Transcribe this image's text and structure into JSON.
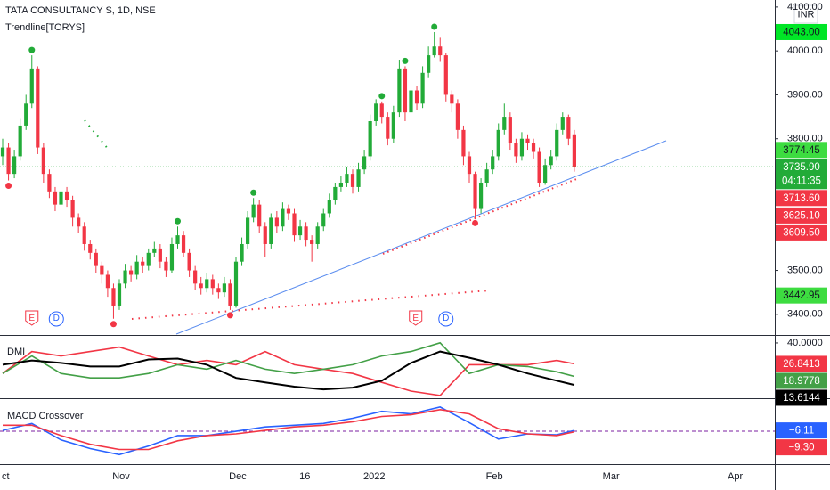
{
  "chart_data": {
    "type": "candlestick",
    "title": "TATA CONSULTANCY S, 1D, NSE",
    "subtitle": "Trendline[TORYS]",
    "currency": "INR",
    "up_color": "#22ab38",
    "down_color": "#f23645",
    "open": [
      3760,
      3780,
      3720,
      3760,
      3830,
      3880,
      3960,
      3780,
      3720,
      3680,
      3650,
      3680,
      3660,
      3620,
      3600,
      3560,
      3540,
      3510,
      3490,
      3460,
      3420,
      3470,
      3500,
      3490,
      3520,
      3510,
      3540,
      3550,
      3520,
      3500,
      3560,
      3580,
      3540,
      3500,
      3470,
      3460,
      3480,
      3460,
      3450,
      3470,
      3420,
      3520,
      3560,
      3620,
      3650,
      3600,
      3560,
      3620,
      3600,
      3640,
      3630,
      3580,
      3600,
      3570,
      3560,
      3600,
      3630,
      3660,
      3690,
      3700,
      3720,
      3690,
      3730,
      3760,
      3840,
      3880,
      3850,
      3800,
      3860,
      3960,
      3860,
      3910,
      3880,
      3950,
      3990,
      4010,
      3990,
      3900,
      3880,
      3820,
      3760,
      3720,
      3640,
      3700,
      3730,
      3760,
      3820,
      3850,
      3790,
      3760,
      3800,
      3790,
      3770,
      3700,
      3740,
      3760,
      3820,
      3850,
      3810
    ],
    "high": [
      3800,
      3790,
      3775,
      3845,
      3900,
      3990,
      3965,
      3790,
      3730,
      3690,
      3700,
      3690,
      3670,
      3630,
      3610,
      3570,
      3550,
      3520,
      3500,
      3470,
      3480,
      3515,
      3510,
      3535,
      3530,
      3550,
      3565,
      3560,
      3530,
      3575,
      3600,
      3590,
      3550,
      3510,
      3485,
      3495,
      3490,
      3470,
      3485,
      3480,
      3530,
      3575,
      3635,
      3665,
      3660,
      3610,
      3630,
      3635,
      3655,
      3650,
      3640,
      3615,
      3610,
      3580,
      3610,
      3640,
      3675,
      3700,
      3715,
      3735,
      3730,
      3745,
      3775,
      3855,
      3890,
      3885,
      3860,
      3875,
      3980,
      3965,
      3925,
      3920,
      3965,
      4010,
      4043,
      4030,
      3995,
      3910,
      3890,
      3830,
      3770,
      3725,
      3710,
      3745,
      3775,
      3835,
      3880,
      3860,
      3800,
      3815,
      3810,
      3800,
      3780,
      3755,
      3775,
      3835,
      3860,
      3855,
      3820
    ],
    "low": [
      3740,
      3705,
      3710,
      3750,
      3820,
      3870,
      3765,
      3700,
      3665,
      3635,
      3640,
      3645,
      3600,
      3585,
      3545,
      3525,
      3495,
      3470,
      3440,
      3390,
      3410,
      3460,
      3475,
      3480,
      3495,
      3500,
      3530,
      3505,
      3485,
      3495,
      3550,
      3530,
      3485,
      3455,
      3445,
      3450,
      3445,
      3435,
      3440,
      3410,
      3415,
      3510,
      3550,
      3610,
      3585,
      3530,
      3550,
      3585,
      3590,
      3615,
      3565,
      3570,
      3555,
      3520,
      3550,
      3590,
      3620,
      3650,
      3680,
      3690,
      3675,
      3680,
      3720,
      3750,
      3830,
      3835,
      3785,
      3790,
      3850,
      3840,
      3850,
      3865,
      3870,
      3940,
      3985,
      3975,
      3885,
      3860,
      3800,
      3740,
      3700,
      3620,
      3630,
      3690,
      3720,
      3750,
      3810,
      3775,
      3745,
      3750,
      3775,
      3755,
      3690,
      3695,
      3730,
      3750,
      3810,
      3785,
      3725
    ],
    "close": [
      3780,
      3720,
      3760,
      3830,
      3880,
      3960,
      3780,
      3720,
      3680,
      3650,
      3680,
      3660,
      3620,
      3600,
      3560,
      3540,
      3510,
      3490,
      3460,
      3420,
      3470,
      3500,
      3490,
      3520,
      3510,
      3540,
      3550,
      3520,
      3500,
      3560,
      3580,
      3540,
      3500,
      3470,
      3460,
      3480,
      3460,
      3450,
      3470,
      3420,
      3520,
      3560,
      3620,
      3650,
      3600,
      3560,
      3620,
      3600,
      3640,
      3630,
      3580,
      3600,
      3570,
      3560,
      3600,
      3630,
      3660,
      3690,
      3700,
      3720,
      3690,
      3730,
      3760,
      3840,
      3880,
      3850,
      3800,
      3860,
      3960,
      3860,
      3910,
      3880,
      3950,
      3990,
      4010,
      3990,
      3900,
      3880,
      3820,
      3760,
      3720,
      3640,
      3700,
      3730,
      3760,
      3820,
      3850,
      3790,
      3760,
      3800,
      3790,
      3770,
      3700,
      3740,
      3760,
      3820,
      3850,
      3800,
      3735.9
    ],
    "xlim": [
      -0.46,
      132.37
    ],
    "xticks": [
      {
        "value": 0.5,
        "label": "ct"
      },
      {
        "value": 20.3,
        "label": "Nov"
      },
      {
        "value": 40.3,
        "label": "Dec"
      },
      {
        "value": 51.8,
        "label": "16"
      },
      {
        "value": 63.7,
        "label": "2022"
      },
      {
        "value": 84.3,
        "label": "Feb"
      },
      {
        "value": 104.3,
        "label": "Mar"
      },
      {
        "value": 125.6,
        "label": "Apr"
      }
    ],
    "ylim": [
      3355,
      4116
    ],
    "yticks": [
      {
        "value": 3400,
        "label": "3400.00"
      },
      {
        "value": 3500,
        "label": "3500.00"
      },
      {
        "value": 3800,
        "label": "3800.00"
      },
      {
        "value": 3900,
        "label": "3900.00"
      },
      {
        "value": 4000,
        "label": "4000.00"
      },
      {
        "value": 4100,
        "label": "4100.00"
      }
    ],
    "price_labels": [
      {
        "value": 4043,
        "label": "4043.00",
        "color": "#00e626",
        "text_color": "#131722"
      },
      {
        "value": 3774.45,
        "label": "3774.45",
        "color": "#3ddc40",
        "text_color": "#131722"
      },
      {
        "value": 3735.9,
        "label": "3735.90",
        "color": "#22ab38",
        "text_color": "#ffffff",
        "countdown": "04:11:35"
      },
      {
        "value": 3713.6,
        "label": "3713.60",
        "color": "#f23645",
        "text_color": "#ffffff"
      },
      {
        "value": 3625.1,
        "label": "3625.10",
        "color": "#f23645",
        "text_color": "#ffffff"
      },
      {
        "value": 3609.5,
        "label": "3609.50",
        "color": "#f23645",
        "text_color": "#ffffff"
      },
      {
        "value": 3442.95,
        "label": "3442.95",
        "color": "#3ddc40",
        "text_color": "#131722"
      }
    ],
    "event_markers": [
      {
        "label": "E"
      },
      {
        "label": "D"
      },
      {
        "label": "E"
      },
      {
        "label": "D"
      }
    ],
    "indicators": [
      {
        "type": "line",
        "title": "DMI",
        "x": [
          0,
          5,
          10,
          15,
          20,
          25,
          30,
          35,
          40,
          45,
          50,
          55,
          60,
          65,
          70,
          75,
          80,
          85,
          90,
          95,
          98
        ],
        "ylim": [
          5.8,
          43.9
        ],
        "yticks": [
          {
            "value": 40,
            "label": "40.0000"
          }
        ],
        "series": [
          {
            "color": "#f23645",
            "last_label": "26.8413",
            "values": [
              20.8,
              34.6,
              31.8,
              34.6,
              37.4,
              31.8,
              26.3,
              29.0,
              26.3,
              34.6,
              26.3,
              23.5,
              20.8,
              15.2,
              9.7,
              7.0,
              26.3,
              26.3,
              26.3,
              29.0,
              26.8413
            ]
          },
          {
            "color": "#43a047",
            "last_label": "18.9778",
            "values": [
              20.8,
              31.8,
              20.8,
              18.0,
              18.0,
              20.8,
              26.3,
              23.5,
              29.0,
              23.5,
              20.8,
              23.5,
              26.3,
              31.8,
              34.6,
              40.1,
              20.8,
              26.3,
              25.2,
              21.9,
              18.9778
            ]
          },
          {
            "color": "#000000",
            "last_label": "13.6144",
            "values": [
              26.3,
              29.0,
              27.4,
              25.2,
              25.2,
              29.6,
              30.2,
              26.3,
              18.0,
              15.2,
              12.5,
              10.8,
              11.9,
              16.3,
              27.4,
              34.6,
              30.7,
              26.3,
              20.8,
              16.3,
              13.6144
            ]
          }
        ]
      },
      {
        "type": "line",
        "title": "MACD Crossover",
        "x": [
          0,
          5,
          10,
          15,
          20,
          25,
          30,
          35,
          40,
          45,
          50,
          55,
          60,
          65,
          70,
          75,
          80,
          85,
          90,
          95,
          98
        ],
        "ylim": [
          -82,
          62
        ],
        "yticks": [],
        "series": [
          {
            "color": "#2962ff",
            "last_label": "−6.11",
            "values": [
              -6.1,
              9.9,
              -28.1,
              -48.1,
              -62.1,
              -42.1,
              -18.1,
              -18.1,
              -8.1,
              1.9,
              5.9,
              9.9,
              21.9,
              37.9,
              31.9,
              47.9,
              11.9,
              -26.1,
              -14.1,
              -16.1,
              -6.11
            ]
          },
          {
            "color": "#f23645",
            "last_label": "−9.30",
            "values": [
              5.9,
              5.9,
              -18.1,
              -38.1,
              -50.1,
              -50.1,
              -30.1,
              -18.1,
              -14.1,
              -6.1,
              1.9,
              5.9,
              13.9,
              25.9,
              29.9,
              41.9,
              31.9,
              -2.1,
              -14.1,
              -18.1,
              -9.3
            ]
          }
        ]
      }
    ]
  }
}
